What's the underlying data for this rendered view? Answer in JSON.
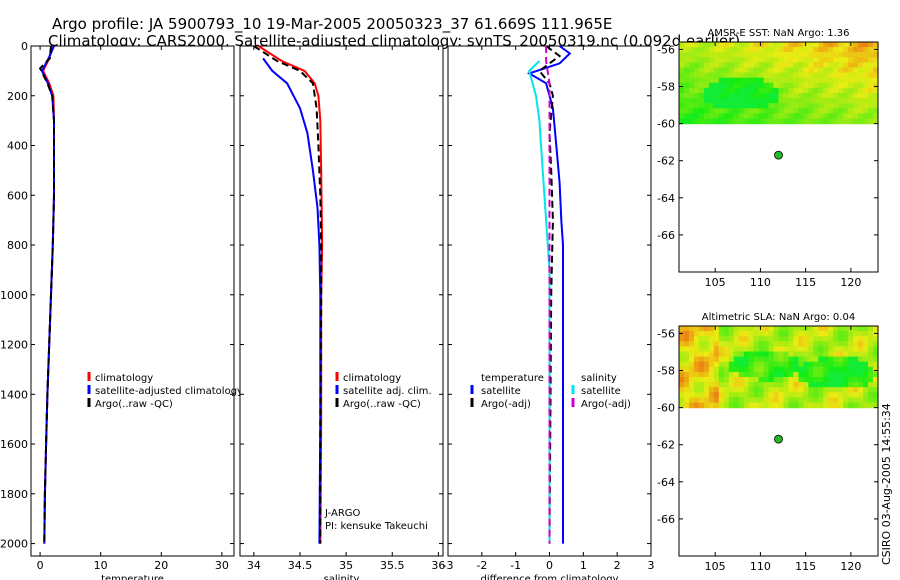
{
  "header": {
    "line1": "Argo profile: JA 5900793_10 19-Mar-2005 20050323_37 61.669S 111.965E",
    "line2": "Climatology: CARS2000. Satellite-adjusted climatology: synTS_20050319.nc (0.092d earlier)"
  },
  "side_stamp": "CSIRO 03-Aug-2005 14:55:34",
  "colors": {
    "red": "#ff0000",
    "blue": "#0000ff",
    "black": "#000000",
    "cyan": "#00e5ee",
    "magenta": "#cc00cc",
    "dot": "#22bb22"
  },
  "depth_axis": {
    "ylim": [
      0,
      2050
    ],
    "ticks": [
      0,
      200,
      400,
      600,
      800,
      1000,
      1200,
      1400,
      1600,
      1800,
      2000
    ],
    "labels": [
      "0",
      "200",
      "400",
      "600",
      "800",
      "1000",
      "1200",
      "1400",
      "1600",
      "1800",
      "2000"
    ]
  },
  "chart_data": [
    {
      "id": "temperature",
      "type": "line",
      "xlabel": "temperature",
      "xlim": [
        -1.5,
        32
      ],
      "xticks": [
        0,
        10,
        20,
        30
      ],
      "xticklabels": [
        "0",
        "10",
        "20",
        "30"
      ],
      "legend": [
        "climatology",
        "satellite-adjusted climatology",
        "Argo(..raw -QC)"
      ],
      "series": [
        {
          "name": "climatology",
          "color": "red",
          "dash": false,
          "points": [
            [
              1.9,
              0
            ],
            [
              1.5,
              50
            ],
            [
              0.5,
              100
            ],
            [
              1.5,
              150
            ],
            [
              2.2,
              200
            ],
            [
              2.3,
              300
            ],
            [
              2.3,
              600
            ],
            [
              2.1,
              800
            ],
            [
              1.8,
              1000
            ],
            [
              1.5,
              1200
            ],
            [
              1.2,
              1400
            ],
            [
              1.0,
              1600
            ],
            [
              0.8,
              1800
            ],
            [
              0.7,
              2000
            ]
          ]
        },
        {
          "name": "satellite-adjusted climatology",
          "color": "blue",
          "dash": false,
          "points": [
            [
              2.3,
              0
            ],
            [
              1.6,
              40
            ],
            [
              0.3,
              100
            ],
            [
              1.3,
              150
            ],
            [
              2.0,
              200
            ],
            [
              2.3,
              300
            ],
            [
              2.3,
              600
            ],
            [
              2.1,
              800
            ],
            [
              1.8,
              1000
            ],
            [
              1.5,
              1200
            ],
            [
              1.2,
              1400
            ],
            [
              1.0,
              1600
            ],
            [
              0.8,
              1800
            ],
            [
              0.7,
              2000
            ]
          ]
        },
        {
          "name": "Argo(..raw -QC)",
          "color": "black",
          "dash": true,
          "points": [
            [
              1.8,
              0
            ],
            [
              1.6,
              50
            ],
            [
              0.0,
              90
            ],
            [
              1.2,
              150
            ],
            [
              2.0,
              200
            ],
            [
              2.3,
              300
            ],
            [
              2.3,
              600
            ],
            [
              2.1,
              800
            ],
            [
              1.8,
              1000
            ],
            [
              1.5,
              1200
            ],
            [
              1.2,
              1400
            ],
            [
              1.0,
              1600
            ],
            [
              0.8,
              1800
            ],
            [
              0.7,
              2000
            ]
          ]
        }
      ]
    },
    {
      "id": "salinity",
      "type": "line",
      "xlabel": "salinity",
      "xlim": [
        33.85,
        36.05
      ],
      "xticks": [
        34,
        34.5,
        35,
        35.5,
        36
      ],
      "xticklabels": [
        "34",
        "34.5",
        "35",
        "35.5",
        "36"
      ],
      "legend": [
        "climatology",
        "satellite adj. clim.",
        "Argo(..raw -QC)"
      ],
      "note": [
        "J-ARGO",
        "PI: kensuke Takeuchi"
      ],
      "series": [
        {
          "name": "climatology",
          "color": "red",
          "dash": false,
          "points": [
            [
              34.05,
              0
            ],
            [
              34.3,
              60
            ],
            [
              34.55,
              100
            ],
            [
              34.66,
              150
            ],
            [
              34.7,
              200
            ],
            [
              34.72,
              300
            ],
            [
              34.73,
              500
            ],
            [
              34.74,
              800
            ],
            [
              34.73,
              1000
            ],
            [
              34.73,
              1500
            ],
            [
              34.72,
              2000
            ]
          ]
        },
        {
          "name": "satellite adj. clim.",
          "color": "blue",
          "dash": false,
          "points": [
            [
              34.1,
              50
            ],
            [
              34.2,
              100
            ],
            [
              34.36,
              150
            ],
            [
              34.5,
              250
            ],
            [
              34.58,
              350
            ],
            [
              34.64,
              500
            ],
            [
              34.69,
              650
            ],
            [
              34.71,
              800
            ],
            [
              34.72,
              1000
            ],
            [
              34.72,
              1500
            ],
            [
              34.71,
              2000
            ]
          ]
        },
        {
          "name": "Argo(..raw -QC)",
          "color": "black",
          "dash": true,
          "points": [
            [
              34.0,
              0
            ],
            [
              34.25,
              60
            ],
            [
              34.5,
              100
            ],
            [
              34.64,
              150
            ],
            [
              34.68,
              250
            ],
            [
              34.7,
              400
            ],
            [
              34.72,
              600
            ],
            [
              34.73,
              800
            ],
            [
              34.73,
              1000
            ],
            [
              34.72,
              1500
            ],
            [
              34.72,
              2000
            ]
          ]
        }
      ]
    },
    {
      "id": "difference",
      "type": "line",
      "xlabel": "difference from climatology",
      "xlim": [
        -3,
        3
      ],
      "xticks": [
        -3,
        -2,
        -1,
        0,
        1,
        2,
        3
      ],
      "xticklabels": [
        "-3",
        "-2",
        "-1",
        "0",
        "1",
        "2",
        "3"
      ],
      "legend_left": [
        "temperature",
        "satellite",
        "Argo(-adj)"
      ],
      "legend_right": [
        "salinity",
        "satellite",
        "Argo(-adj)"
      ],
      "series": [
        {
          "name": "temperature satellite",
          "color": "blue",
          "dash": false,
          "points": [
            [
              0.3,
              0
            ],
            [
              0.6,
              30
            ],
            [
              0.3,
              70
            ],
            [
              -0.6,
              110
            ],
            [
              -0.1,
              150
            ],
            [
              0.1,
              250
            ],
            [
              0.2,
              400
            ],
            [
              0.3,
              550
            ],
            [
              0.35,
              700
            ],
            [
              0.4,
              800
            ],
            [
              0.4,
              1000
            ],
            [
              0.4,
              1400
            ],
            [
              0.4,
              2000
            ]
          ]
        },
        {
          "name": "temperature Argo(-adj)",
          "color": "black",
          "dash": true,
          "points": [
            [
              -0.1,
              0
            ],
            [
              0.3,
              40
            ],
            [
              -0.3,
              100
            ],
            [
              0.0,
              150
            ],
            [
              0.1,
              200
            ],
            [
              0.0,
              350
            ],
            [
              0.05,
              500
            ],
            [
              0.1,
              700
            ],
            [
              0.05,
              1000
            ],
            [
              0.0,
              2000
            ]
          ]
        },
        {
          "name": "salinity satellite",
          "color": "cyan",
          "dash": false,
          "points": [
            [
              -0.3,
              60
            ],
            [
              -0.6,
              100
            ],
            [
              -0.4,
              200
            ],
            [
              -0.3,
              300
            ],
            [
              -0.2,
              500
            ],
            [
              -0.1,
              700
            ],
            [
              0.0,
              900
            ],
            [
              0.0,
              2000
            ]
          ]
        },
        {
          "name": "salinity Argo(-adj)",
          "color": "magenta",
          "dash": true,
          "points": [
            [
              -0.1,
              0
            ],
            [
              -0.1,
              60
            ],
            [
              0.0,
              150
            ],
            [
              0.0,
              2000
            ]
          ]
        }
      ]
    }
  ],
  "maps": [
    {
      "title": "AMSR-E SST: NaN Argo: 1.36",
      "xlim": [
        101,
        123
      ],
      "ylim": [
        -68,
        -55.6
      ],
      "xticks": [
        105,
        110,
        115,
        120
      ],
      "xticklabels": [
        "105",
        "110",
        "115",
        "120"
      ],
      "yticks": [
        -56,
        -58,
        -60,
        -62,
        -64,
        -66
      ],
      "yticklabels": [
        "-56",
        "-58",
        "-60",
        "-62",
        "-64",
        "-66"
      ],
      "field_top": -55.6,
      "field_bottom": -60,
      "dot": [
        112,
        -61.7
      ],
      "style": "sst"
    },
    {
      "title": "Altimetric SLA: NaN Argo: 0.04",
      "xlim": [
        101,
        123
      ],
      "ylim": [
        -68,
        -55.6
      ],
      "xticks": [
        105,
        110,
        115,
        120
      ],
      "xticklabels": [
        "105",
        "110",
        "115",
        "120"
      ],
      "yticks": [
        -56,
        -58,
        -60,
        -62,
        -64,
        -66
      ],
      "yticklabels": [
        "-56",
        "-58",
        "-60",
        "-62",
        "-64",
        "-66"
      ],
      "field_top": -55.6,
      "field_bottom": -60,
      "dot": [
        112,
        -61.7
      ],
      "style": "sla"
    }
  ]
}
